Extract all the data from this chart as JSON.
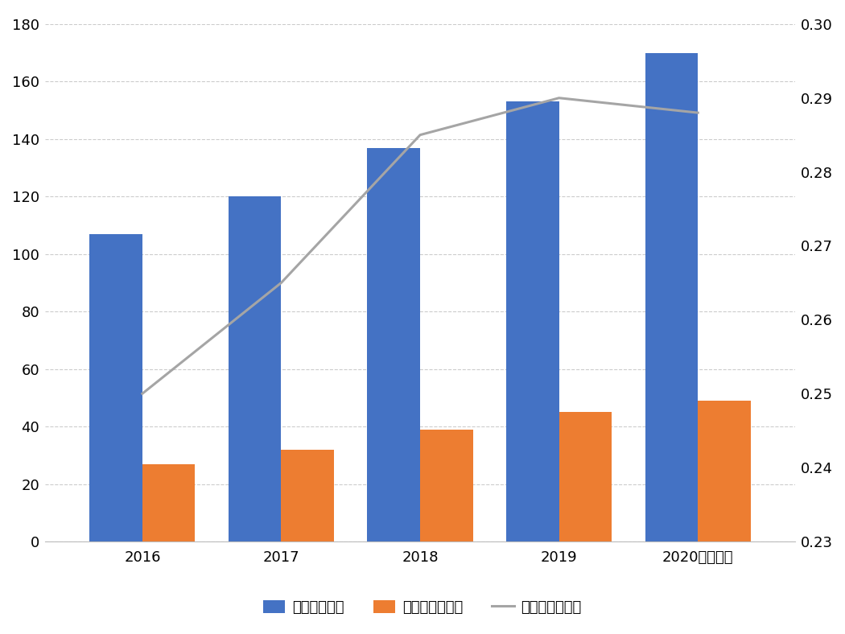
{
  "categories": [
    "2016",
    "2017",
    "2018",
    "2019",
    "2020前三季度"
  ],
  "blue_bars": [
    107,
    120,
    137,
    153,
    170
  ],
  "orange_bars": [
    27,
    32,
    39,
    45,
    49
  ],
  "line_values": [
    0.25,
    0.265,
    0.285,
    0.29,
    0.288
  ],
  "blue_color": "#4472C4",
  "orange_color": "#ED7D31",
  "line_color": "#A5A5A5",
  "left_ylim": [
    0,
    180
  ],
  "left_yticks": [
    0,
    20,
    40,
    60,
    80,
    100,
    120,
    140,
    160,
    180
  ],
  "right_ylim": [
    0.23,
    0.3
  ],
  "right_yticks": [
    0.23,
    0.24,
    0.25,
    0.26,
    0.27,
    0.28,
    0.29,
    0.3
  ],
  "legend_labels": [
    "各项贷款余额",
    "房地产贷款余额",
    "房地产贷款占比"
  ],
  "background_color": "#FFFFFF",
  "grid_color": "#CCCCCC",
  "bar_width": 0.38
}
